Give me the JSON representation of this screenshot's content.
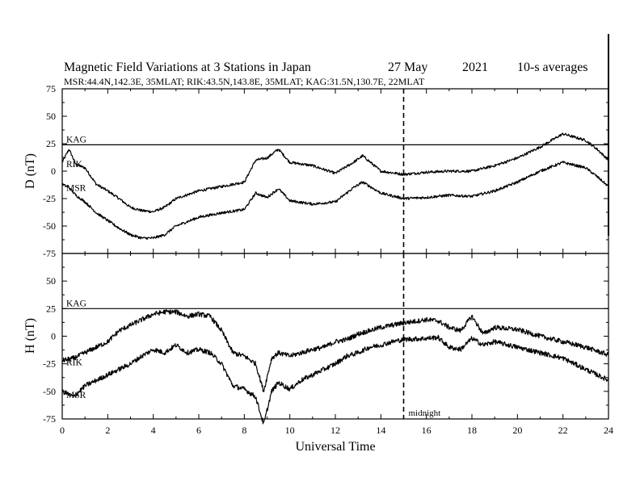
{
  "header": {
    "title": "Magnetic Field Variations at 3 Stations in Japan",
    "date": "27 May",
    "year": "2021",
    "averaging": "10-s averages",
    "stations_line": "MSR:44.4N,142.3E, 35MLAT;  RIK:43.5N,143.8E, 35MLAT;  KAG:31.5N,130.7E, 22MLAT"
  },
  "chart_data": [
    {
      "type": "line",
      "panel": "top",
      "ylabel": "D (nT)",
      "xlabel": "Universal Time",
      "xlim": [
        0,
        24
      ],
      "ylim": [
        -75,
        75
      ],
      "xticks": [
        "0",
        "2",
        "4",
        "6",
        "8",
        "10",
        "12",
        "14",
        "16",
        "18",
        "20",
        "22",
        "24"
      ],
      "yticks": [
        "75",
        "50",
        "25",
        "0",
        "-25",
        "-50",
        "-75"
      ],
      "midnight_ut": 15,
      "series": [
        {
          "name": "KAG",
          "x": [
            0,
            24
          ],
          "values": [
            24,
            24
          ]
        },
        {
          "name": "RIK",
          "x": [
            0,
            0.3,
            0.6,
            1.0,
            1.5,
            2.0,
            2.5,
            3.0,
            3.5,
            4.0,
            4.5,
            5.0,
            6.0,
            7.0,
            8.0,
            8.5,
            9.0,
            9.5,
            10.0,
            11.0,
            12.0,
            12.8,
            13.2,
            14.0,
            15.0,
            16.0,
            17.0,
            18.0,
            19.0,
            20.0,
            21.0,
            22.0,
            23.0,
            23.5,
            24.0
          ],
          "values": [
            8,
            20,
            6,
            3,
            -12,
            -18,
            -25,
            -33,
            -36,
            -37,
            -33,
            -25,
            -18,
            -14,
            -10,
            10,
            12,
            20,
            8,
            5,
            -2,
            8,
            14,
            0,
            -3,
            -1,
            0,
            0,
            5,
            12,
            22,
            34,
            28,
            20,
            10
          ]
        },
        {
          "name": "MSR",
          "x": [
            0,
            0.3,
            0.6,
            1.0,
            1.5,
            2.0,
            2.5,
            3.0,
            3.5,
            4.0,
            4.5,
            5.0,
            6.0,
            7.0,
            8.0,
            8.5,
            9.0,
            9.5,
            10.0,
            11.0,
            12.0,
            12.8,
            13.2,
            14.0,
            15.0,
            16.0,
            17.0,
            18.0,
            19.0,
            20.0,
            21.0,
            22.0,
            23.0,
            23.5,
            24.0
          ],
          "values": [
            -12,
            -15,
            -22,
            -28,
            -38,
            -45,
            -52,
            -58,
            -61,
            -61,
            -58,
            -50,
            -42,
            -38,
            -35,
            -20,
            -24,
            -16,
            -27,
            -30,
            -28,
            -15,
            -10,
            -20,
            -25,
            -24,
            -22,
            -23,
            -18,
            -10,
            0,
            8,
            3,
            -5,
            -14
          ]
        }
      ]
    },
    {
      "type": "line",
      "panel": "bottom",
      "ylabel": "H (nT)",
      "xlabel": "Universal Time",
      "xlim": [
        0,
        24
      ],
      "ylim": [
        -75,
        75
      ],
      "xticks": [
        "0",
        "2",
        "4",
        "6",
        "8",
        "10",
        "12",
        "14",
        "16",
        "18",
        "20",
        "22",
        "24"
      ],
      "yticks": [
        "75",
        "50",
        "25",
        "0",
        "-25",
        "-50",
        "-75"
      ],
      "midnight_ut": 15,
      "midnight_label": "midnight",
      "series": [
        {
          "name": "KAG",
          "x": [
            0,
            24
          ],
          "values": [
            25,
            25
          ]
        },
        {
          "name": "RIK",
          "x": [
            0,
            0.5,
            1.0,
            1.5,
            2.0,
            2.5,
            3.0,
            3.5,
            4.0,
            4.5,
            5.0,
            5.5,
            6.0,
            6.5,
            7.0,
            7.5,
            8.0,
            8.5,
            8.85,
            9.2,
            9.5,
            10.0,
            10.5,
            11.0,
            11.5,
            12.0,
            12.5,
            13.0,
            13.5,
            14.0,
            14.5,
            15.0,
            16.0,
            16.5,
            17.0,
            17.5,
            18.0,
            18.5,
            19.0,
            20.0,
            21.0,
            22.0,
            23.0,
            24.0
          ],
          "values": [
            -22,
            -20,
            -15,
            -10,
            -5,
            5,
            10,
            15,
            20,
            22,
            22,
            18,
            20,
            18,
            5,
            -15,
            -18,
            -25,
            -50,
            -20,
            -15,
            -18,
            -15,
            -12,
            -10,
            -5,
            -3,
            2,
            5,
            8,
            10,
            12,
            15,
            14,
            8,
            5,
            18,
            2,
            8,
            6,
            0,
            -5,
            -10,
            -17
          ]
        },
        {
          "name": "MSR",
          "x": [
            0,
            0.5,
            1.0,
            1.5,
            2.0,
            2.5,
            3.0,
            3.5,
            4.0,
            4.5,
            5.0,
            5.5,
            6.0,
            6.5,
            7.0,
            7.5,
            8.0,
            8.5,
            8.85,
            9.2,
            9.5,
            10.0,
            10.5,
            11.0,
            11.5,
            12.0,
            12.5,
            13.0,
            13.5,
            14.0,
            14.5,
            15.0,
            16.0,
            16.5,
            17.0,
            17.5,
            18.0,
            18.5,
            19.0,
            20.0,
            21.0,
            22.0,
            23.0,
            24.0
          ],
          "values": [
            -50,
            -55,
            -45,
            -40,
            -35,
            -30,
            -25,
            -18,
            -12,
            -15,
            -8,
            -15,
            -12,
            -15,
            -25,
            -45,
            -48,
            -55,
            -80,
            -50,
            -42,
            -48,
            -40,
            -35,
            -30,
            -25,
            -18,
            -15,
            -10,
            -8,
            -5,
            -3,
            -2,
            -1,
            -10,
            -12,
            -2,
            -8,
            -5,
            -10,
            -15,
            -20,
            -30,
            -40
          ]
        }
      ]
    }
  ]
}
